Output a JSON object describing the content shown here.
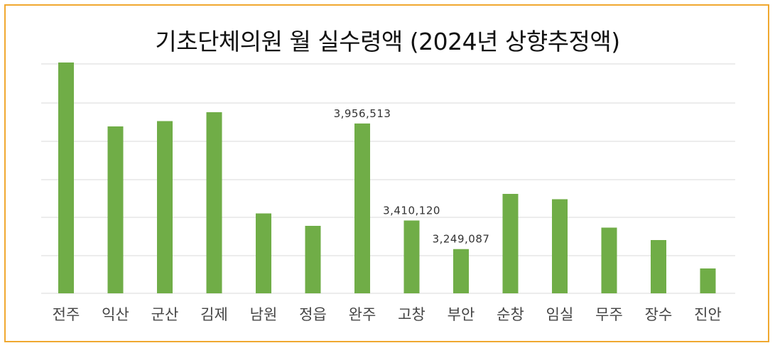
{
  "chart_data": {
    "type": "bar",
    "title": "기초단체의원 월 실수령액 (2024년 상향추정액)",
    "xlabel": "",
    "ylabel": "",
    "categories": [
      "전주",
      "익산",
      "군산",
      "김제",
      "남원",
      "정읍",
      "완주",
      "고창",
      "부안",
      "순창",
      "임실",
      "무주",
      "장수",
      "진안"
    ],
    "values": [
      4300000,
      3940000,
      3970000,
      4020000,
      3450000,
      3380000,
      3956513,
      3410120,
      3249087,
      3560000,
      3530000,
      3370000,
      3300000,
      3140000
    ],
    "data_labels": [
      {
        "index": 6,
        "text": "3,956,513"
      },
      {
        "index": 7,
        "text": "3,410,120"
      },
      {
        "index": 8,
        "text": "3,249,087"
      }
    ],
    "series_color": "#70ad47",
    "grid": true,
    "y_axis_labels": false
  }
}
